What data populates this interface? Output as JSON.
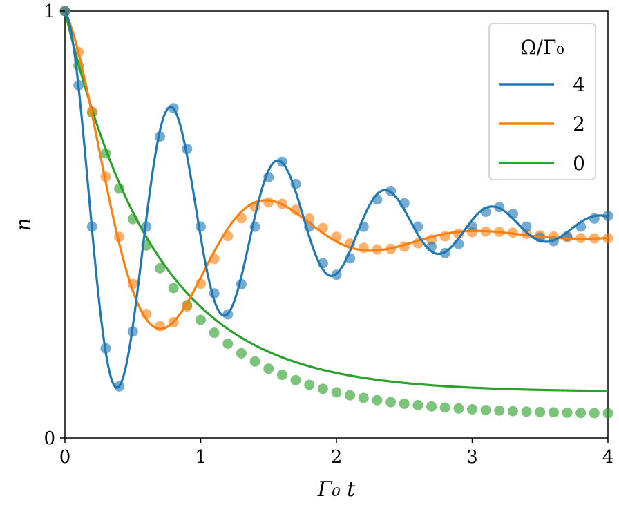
{
  "chart_data": {
    "type": "line",
    "xlabel": "Γ₀ t",
    "ylabel": "n",
    "xlim": [
      0,
      4
    ],
    "ylim": [
      0,
      1
    ],
    "xticks": [
      "0",
      "1",
      "2",
      "3",
      "4"
    ],
    "yticks": [
      "0",
      "1"
    ],
    "legend": {
      "title": "Ω/Γ₀",
      "placement": "top-right"
    },
    "series": [
      {
        "name": "4",
        "color": "#1f77b4",
        "line": {
          "gamma": 1.0,
          "omega": 4.0,
          "steady": 0.495
        },
        "points": {
          "gamma": 1.0,
          "omega": 4.0,
          "steady": 0.495,
          "phase": -0.1
        }
      },
      {
        "name": "2",
        "color": "#ff7f0e",
        "line": {
          "gamma": 1.05,
          "omega": 2.0,
          "steady": 0.472
        },
        "points": {
          "gamma": 1.05,
          "omega": 2.0,
          "steady": 0.472,
          "phase": -0.12
        }
      },
      {
        "name": "0",
        "color": "#2ca02c",
        "line": {
          "rate": 1.5,
          "steady": 0.108
        },
        "points": {
          "rate": 1.45,
          "steady": 0.055
        }
      }
    ],
    "point_x_step": 0.1
  }
}
